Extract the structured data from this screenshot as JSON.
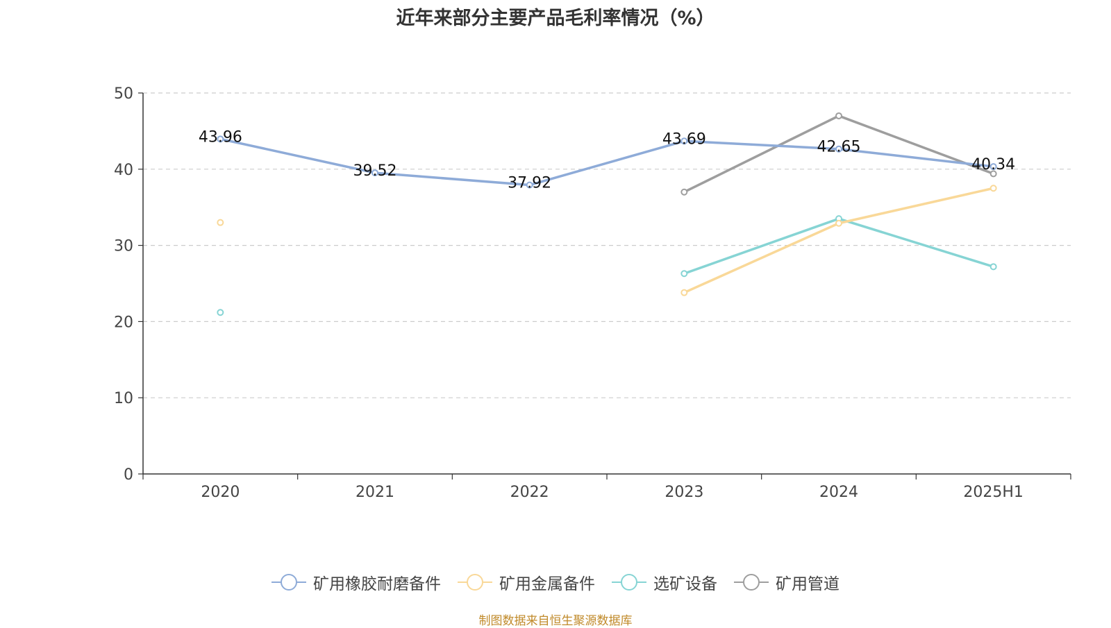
{
  "chart_data": {
    "type": "line",
    "title": "近年来部分主要产品毛利率情况（%）",
    "categories": [
      "2020",
      "2021",
      "2022",
      "2023",
      "2024",
      "2025H1"
    ],
    "ylim": [
      0,
      50
    ],
    "yticks": [
      0,
      10,
      20,
      30,
      40,
      50
    ],
    "grid": true,
    "legend_position": "bottom",
    "series": [
      {
        "name": "矿用橡胶耐磨备件",
        "color": "#8eabd8",
        "values": [
          43.96,
          39.52,
          37.92,
          43.69,
          42.65,
          40.34
        ],
        "labels": [
          "43.96",
          "39.52",
          "37.92",
          "43.69",
          "42.65",
          "40.34"
        ]
      },
      {
        "name": "矿用金属备件",
        "color": "#f9d898",
        "values": [
          33.0,
          null,
          null,
          23.8,
          32.9,
          37.5
        ]
      },
      {
        "name": "选矿设备",
        "color": "#86d4d4",
        "values": [
          21.2,
          null,
          null,
          26.3,
          33.5,
          27.2
        ]
      },
      {
        "name": "矿用管道",
        "color": "#9e9e9e",
        "values": [
          null,
          null,
          null,
          37.0,
          47.0,
          39.4
        ]
      }
    ]
  },
  "source": "制图数据来自恒生聚源数据库"
}
